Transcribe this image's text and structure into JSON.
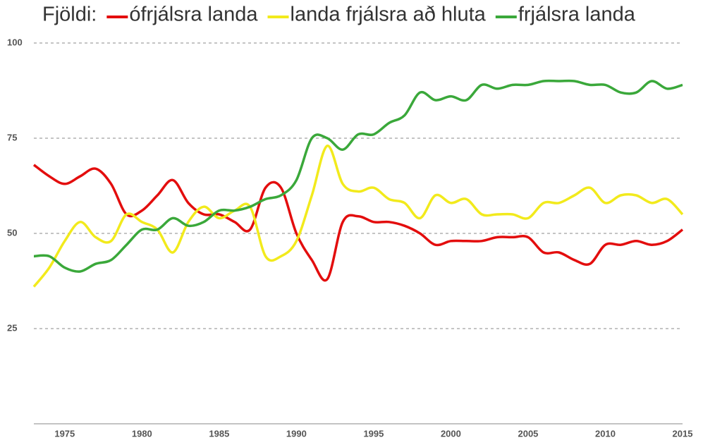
{
  "chart_data": {
    "type": "line",
    "title": "Fjöldi:",
    "x": [
      1973,
      1974,
      1975,
      1976,
      1977,
      1978,
      1979,
      1980,
      1981,
      1982,
      1983,
      1984,
      1985,
      1986,
      1987,
      1988,
      1989,
      1990,
      1991,
      1992,
      1993,
      1994,
      1995,
      1996,
      1997,
      1998,
      1999,
      2000,
      2001,
      2002,
      2003,
      2004,
      2005,
      2006,
      2007,
      2008,
      2009,
      2010,
      2011,
      2012,
      2013,
      2014,
      2015
    ],
    "series": [
      {
        "name": "ófrjálsra landa",
        "color": "#e30d0d",
        "values": [
          68,
          65,
          63,
          65,
          67,
          63,
          55,
          56,
          60,
          64,
          58,
          55,
          55,
          53,
          51,
          62,
          62,
          50,
          43,
          38,
          53,
          54.5,
          53,
          53,
          52,
          50,
          47,
          48,
          48,
          48,
          49,
          49,
          49,
          45,
          45,
          43,
          42,
          47,
          47,
          48,
          47,
          48,
          51
        ]
      },
      {
        "name": "landa frjálsra að hluta",
        "color": "#f2ea1c",
        "values": [
          36,
          41,
          48,
          53,
          49,
          48,
          55,
          53,
          51,
          45,
          53,
          57,
          54,
          56,
          57,
          44,
          44,
          48,
          60,
          73,
          63,
          61,
          62,
          59,
          58,
          54,
          60,
          58,
          59,
          55,
          55,
          55,
          54,
          58,
          58,
          60,
          62,
          58,
          60,
          60,
          58,
          59,
          55
        ]
      },
      {
        "name": "frjálsra landa",
        "color": "#3aa83a",
        "values": [
          44,
          44,
          41,
          40,
          42,
          43,
          47,
          51,
          51,
          54,
          52,
          53,
          56,
          56,
          57,
          59,
          60,
          64,
          75,
          75,
          72,
          76,
          76,
          79,
          81,
          87,
          85,
          86,
          85,
          89,
          88,
          89,
          89,
          90,
          90,
          90,
          89,
          89,
          87,
          87,
          90,
          88,
          89
        ]
      }
    ],
    "xlim": [
      1973,
      2015
    ],
    "xticks": [
      1975,
      1980,
      1985,
      1990,
      1995,
      2000,
      2005,
      2010,
      2015
    ],
    "ylim": [
      0,
      100
    ],
    "yticks": [
      25,
      50,
      75,
      100
    ],
    "grid": true
  }
}
